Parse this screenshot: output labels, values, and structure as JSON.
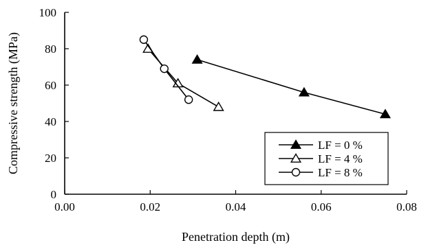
{
  "chart_data": {
    "type": "line",
    "xlabel": "Penetration depth (m)",
    "ylabel": "Compressive strength (MPa)",
    "xlim": [
      0,
      0.08
    ],
    "ylim": [
      0,
      100
    ],
    "x_ticks": [
      "0.00",
      "0.02",
      "0.04",
      "0.06",
      "0.08"
    ],
    "x_tick_values": [
      0,
      0.02,
      0.04,
      0.06,
      0.08
    ],
    "y_ticks": [
      "0",
      "20",
      "40",
      "60",
      "80",
      "100"
    ],
    "y_tick_values": [
      0,
      20,
      40,
      60,
      80,
      100
    ],
    "grid": false,
    "legend_position": "bottom-right",
    "series": [
      {
        "name": "LF = 0 %",
        "marker": "filled-triangle",
        "x": [
          0.031,
          0.056,
          0.075
        ],
        "y": [
          74,
          56,
          44
        ]
      },
      {
        "name": "LF = 4 %",
        "marker": "open-triangle",
        "x": [
          0.0195,
          0.0265,
          0.036
        ],
        "y": [
          80,
          61,
          48
        ]
      },
      {
        "name": "LF = 8 %",
        "marker": "open-circle",
        "x": [
          0.0185,
          0.0233,
          0.029
        ],
        "y": [
          85,
          69,
          52
        ]
      }
    ]
  }
}
